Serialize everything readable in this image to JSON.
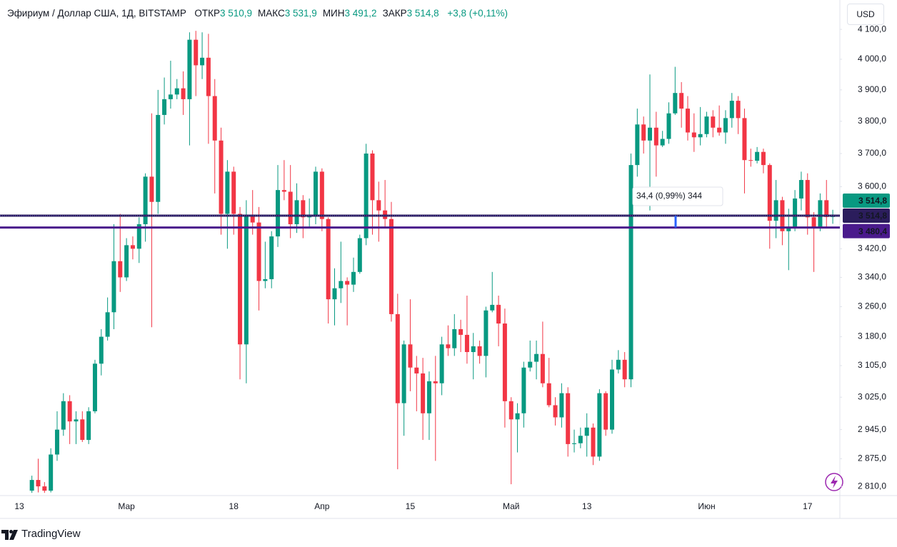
{
  "chart_data": {
    "type": "candlestick",
    "title": "Эфириум / Доллар США, 1Д, BITSTAMP",
    "legend_fields": [
      {
        "label": "ОТКР",
        "value": "3 510,9"
      },
      {
        "label": "МАКС",
        "value": "3 531,9"
      },
      {
        "label": "МИН",
        "value": "3 491,2"
      },
      {
        "label": "ЗАКР",
        "value": "3 514,8"
      }
    ],
    "change": "+3,8 (+0,11%)",
    "currency": "USD",
    "categories": [
      "13",
      null,
      null,
      null,
      null,
      null,
      null,
      null,
      null,
      null,
      null,
      null,
      null,
      null,
      null,
      null,
      null,
      "Мар",
      null,
      null,
      null,
      null,
      null,
      null,
      null,
      null,
      null,
      null,
      null,
      null,
      null,
      null,
      null,
      null,
      "18",
      null,
      null,
      null,
      null,
      null,
      null,
      null,
      null,
      null,
      null,
      null,
      null,
      null,
      "Апр",
      null,
      null,
      null,
      null,
      null,
      null,
      null,
      null,
      null,
      null,
      null,
      null,
      null,
      "15",
      null,
      null,
      null,
      null,
      null,
      null,
      null,
      null,
      null,
      null,
      null,
      null,
      null,
      null,
      null,
      "Май",
      null,
      null,
      null,
      null,
      null,
      null,
      null,
      null,
      null,
      null,
      null,
      "13",
      null,
      null,
      null,
      null,
      null,
      null,
      null,
      null,
      null,
      null,
      null,
      null,
      null,
      null,
      null,
      null,
      null,
      null,
      "Июн",
      null,
      null,
      null,
      null,
      null,
      null,
      null,
      null,
      null,
      null,
      null,
      null,
      null,
      null,
      null,
      "17",
      null,
      null,
      null,
      null
    ],
    "open": [
      null,
      null,
      2800,
      2825,
      2810,
      2800,
      2885,
      2945,
      3015,
      2965,
      2970,
      2920,
      2990,
      3110,
      3180,
      3245,
      3385,
      3340,
      3430,
      3420,
      3490,
      3630,
      3555,
      3820,
      3870,
      3885,
      3905,
      3870,
      4065,
      3980,
      4005,
      3880,
      3740,
      3520,
      3645,
      3520,
      3160,
      3515,
      3495,
      3330,
      3335,
      3455,
      3590,
      3585,
      3490,
      3560,
      3510,
      3515,
      3645,
      3505,
      3280,
      3310,
      3330,
      3320,
      3355,
      3450,
      3700,
      3560,
      3530,
      3505,
      3240,
      3010,
      3160,
      3100,
      3085,
      2985,
      3065,
      3060,
      3160,
      3150,
      3200,
      3185,
      3140,
      3155,
      3130,
      3250,
      3265,
      3215,
      3015,
      2970,
      2985,
      3100,
      3115,
      3135,
      3060,
      3005,
      2975,
      3035,
      2910,
      2912,
      2930,
      2950,
      2880,
      3035,
      2945,
      3095,
      3120,
      3070,
      3665,
      3790,
      3740,
      3780,
      3725,
      3745,
      3825,
      3890,
      3840,
      3765,
      3750,
      3760,
      3815,
      3780,
      3765,
      3810,
      3865,
      3810,
      3680,
      3678,
      3705,
      3665,
      3500,
      3560,
      3470,
      3480,
      3565,
      3620,
      3510,
      3480,
      3560,
      3510.9
    ],
    "high": [
      null,
      null,
      2835,
      2875,
      2820,
      2900,
      2990,
      3035,
      3030,
      2990,
      2990,
      3000,
      3120,
      3200,
      3285,
      3490,
      3520,
      3450,
      3455,
      3510,
      3640,
      3825,
      3900,
      3940,
      3995,
      3935,
      3960,
      4090,
      4095,
      4090,
      4085,
      3935,
      3780,
      3680,
      3660,
      3540,
      3560,
      3590,
      3540,
      3440,
      3470,
      3665,
      3680,
      3665,
      3610,
      3575,
      3565,
      3660,
      3655,
      3510,
      3365,
      3440,
      3340,
      3395,
      3460,
      3730,
      3710,
      3615,
      3620,
      3555,
      3295,
      3170,
      3280,
      3130,
      3125,
      3090,
      3130,
      3180,
      3210,
      3240,
      3225,
      3290,
      3190,
      3170,
      3260,
      3355,
      3290,
      3255,
      3025,
      3010,
      3115,
      3170,
      3170,
      3220,
      3125,
      3025,
      3060,
      3050,
      2945,
      2950,
      2985,
      2960,
      3045,
      3040,
      3120,
      3145,
      3140,
      3700,
      3840,
      3815,
      3950,
      3830,
      3770,
      3860,
      3975,
      3925,
      3880,
      3825,
      3845,
      3830,
      3835,
      3850,
      3835,
      3890,
      3880,
      3840,
      3715,
      3720,
      3715,
      3670,
      3620,
      3570,
      3535,
      3590,
      3645,
      3640,
      3525,
      3580,
      3620,
      3531.9
    ],
    "low": [
      null,
      null,
      2795,
      2796,
      2795,
      2796,
      2870,
      2930,
      2910,
      2910,
      2915,
      2910,
      2985,
      3080,
      3170,
      3200,
      3300,
      3330,
      3390,
      3380,
      3440,
      3205,
      3520,
      3790,
      3840,
      3870,
      3820,
      3725,
      3880,
      3935,
      3730,
      3580,
      3460,
      3420,
      3460,
      3070,
      3060,
      3460,
      3250,
      3310,
      3310,
      3425,
      3560,
      3450,
      3465,
      3450,
      3480,
      3490,
      3470,
      3215,
      3210,
      3270,
      3210,
      3300,
      3350,
      3430,
      3460,
      3440,
      3480,
      3220,
      2850,
      2930,
      3040,
      2990,
      2920,
      2920,
      2870,
      3030,
      3130,
      3130,
      3140,
      3110,
      3070,
      3110,
      3075,
      3245,
      3155,
      2950,
      2815,
      2890,
      2950,
      3090,
      3070,
      3050,
      3000,
      2955,
      2950,
      2880,
      2890,
      2900,
      2880,
      2860,
      2870,
      2930,
      2935,
      3085,
      3050,
      3050,
      3630,
      3700,
      3530,
      3630,
      3720,
      3730,
      3820,
      3780,
      3740,
      3705,
      3725,
      3750,
      3750,
      3755,
      3730,
      3780,
      3760,
      3580,
      3660,
      3670,
      3640,
      3420,
      3450,
      3430,
      3360,
      3470,
      3530,
      3460,
      3355,
      3470,
      3480,
      3491.2
    ],
    "close": [
      null,
      null,
      2825,
      2810,
      2800,
      2885,
      2945,
      3015,
      2965,
      2970,
      2920,
      2990,
      3110,
      3180,
      3245,
      3385,
      3340,
      3430,
      3420,
      3490,
      3630,
      3555,
      3820,
      3870,
      3885,
      3905,
      3870,
      4065,
      3980,
      4005,
      3880,
      3740,
      3520,
      3645,
      3520,
      3160,
      3515,
      3495,
      3330,
      3335,
      3455,
      3590,
      3585,
      3490,
      3560,
      3510,
      3515,
      3645,
      3505,
      3280,
      3310,
      3330,
      3320,
      3355,
      3450,
      3700,
      3560,
      3530,
      3505,
      3240,
      3010,
      3160,
      3100,
      3085,
      2985,
      3065,
      3060,
      3160,
      3150,
      3200,
      3185,
      3140,
      3155,
      3130,
      3250,
      3265,
      3215,
      3015,
      2970,
      2985,
      3100,
      3115,
      3135,
      3060,
      3005,
      2975,
      3035,
      2910,
      2912,
      2930,
      2950,
      2880,
      3035,
      2945,
      3095,
      3120,
      3070,
      3665,
      3790,
      3740,
      3780,
      3725,
      3745,
      3825,
      3890,
      3840,
      3765,
      3750,
      3760,
      3815,
      3780,
      3765,
      3810,
      3865,
      3810,
      3680,
      3678,
      3705,
      3665,
      3500,
      3560,
      3470,
      3480,
      3565,
      3620,
      3510,
      3480,
      3560,
      3510.9,
      3514.8
    ],
    "up_color": "#089981",
    "down_color": "#f23645",
    "ylim": [
      2792,
      4127
    ],
    "log_scale": true,
    "grid": false,
    "yticks": [
      {
        "value": 4100,
        "label": "4 100,0"
      },
      {
        "value": 4000,
        "label": "4 000,0"
      },
      {
        "value": 3900,
        "label": "3 900,0"
      },
      {
        "value": 3800,
        "label": "3 800,0"
      },
      {
        "value": 3700,
        "label": "3 700,0"
      },
      {
        "value": 3600,
        "label": "3 600,0"
      },
      {
        "value": 3420,
        "label": "3 420,0"
      },
      {
        "value": 3340,
        "label": "3 340,0"
      },
      {
        "value": 3260,
        "label": "3 260,0"
      },
      {
        "value": 3180,
        "label": "3 180,0"
      },
      {
        "value": 3105,
        "label": "3 105,0"
      },
      {
        "value": 3025,
        "label": "3 025,0"
      },
      {
        "value": 2945,
        "label": "2 945,0"
      },
      {
        "value": 2875,
        "label": "2 875,0"
      },
      {
        "value": 2810,
        "label": "2 810,0"
      }
    ],
    "last_price": {
      "label": "3 514,8",
      "color": "#089981"
    },
    "horizontal_lines": [
      {
        "value": 3514.8,
        "label": "3 514,8",
        "color": "#2b1d5c"
      },
      {
        "value": 3480.4,
        "label": "3 480,4",
        "color": "#4a1a8c"
      }
    ],
    "measure_label": "34,4 (0,99%) 344"
  },
  "brand": "TradingView"
}
